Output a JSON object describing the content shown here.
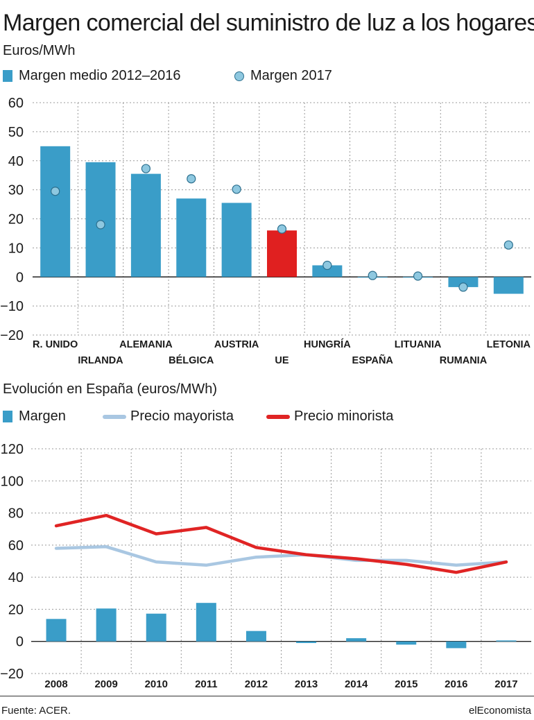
{
  "header": {
    "title": "Margen comercial del suministro de luz a los hogares",
    "subtitle": "Euros/MWh"
  },
  "colors": {
    "bar": "#3a9dc8",
    "highlight": "#e02020",
    "dot": "#8ec8e0",
    "dot_stroke": "#2c6f8e",
    "minorista": "#e02424",
    "mayorista": "#a9c7e2",
    "grid": "#999999"
  },
  "top_legend": {
    "bars": "Margen medio 2012–2016",
    "dots": "Margen 2017"
  },
  "bottom": {
    "title": "Evolución en España (euros/MWh)",
    "legend": {
      "margen": "Margen",
      "mayorista": "Precio mayorista",
      "minorista": "Precio minorista"
    }
  },
  "footer": {
    "source": "Fuente: ACER.",
    "brand": "elEconomista"
  },
  "chart_data": [
    {
      "type": "bar",
      "categories": [
        "R. UNIDO",
        "IRLANDA",
        "ALEMANIA",
        "BÉLGICA",
        "AUSTRIA",
        "UE",
        "HUNGRÍA",
        "ESPAÑA",
        "LITUANIA",
        "RUMANIA",
        "LETONIA"
      ],
      "series": [
        {
          "name": "Margen medio 2012–2016",
          "values": [
            45,
            39.5,
            35.5,
            27,
            25.5,
            16,
            4,
            0,
            -0.2,
            -3.5,
            -5.8
          ]
        },
        {
          "name": "Margen 2017",
          "values": [
            29.5,
            18,
            37.3,
            33.8,
            30.2,
            16.5,
            4,
            0.5,
            0.3,
            -3.5,
            11
          ]
        }
      ],
      "highlight_category": "UE",
      "ylim": [
        -20,
        60
      ],
      "yticks": [
        -20,
        -10,
        0,
        10,
        20,
        30,
        40,
        50,
        60
      ],
      "grid": true
    },
    {
      "type": "bar+line",
      "categories": [
        "2008",
        "2009",
        "2010",
        "2011",
        "2012",
        "2013",
        "2014",
        "2015",
        "2016",
        "2017"
      ],
      "series": [
        {
          "name": "Margen",
          "type": "bar",
          "values": [
            14,
            20.5,
            17.3,
            24,
            6.5,
            -1,
            2,
            -2,
            -4.2,
            0.6
          ]
        },
        {
          "name": "Precio mayorista",
          "type": "line",
          "values": [
            58,
            59,
            49.5,
            47.5,
            52.5,
            54,
            50.5,
            50.5,
            47.5,
            49.5
          ]
        },
        {
          "name": "Precio minorista",
          "type": "line",
          "values": [
            72,
            78.5,
            67,
            71,
            58.5,
            54,
            51.5,
            48,
            43,
            49.5
          ]
        }
      ],
      "ylim": [
        -20,
        120
      ],
      "yticks": [
        -20,
        0,
        20,
        40,
        60,
        80,
        100,
        120
      ],
      "grid": true
    }
  ]
}
